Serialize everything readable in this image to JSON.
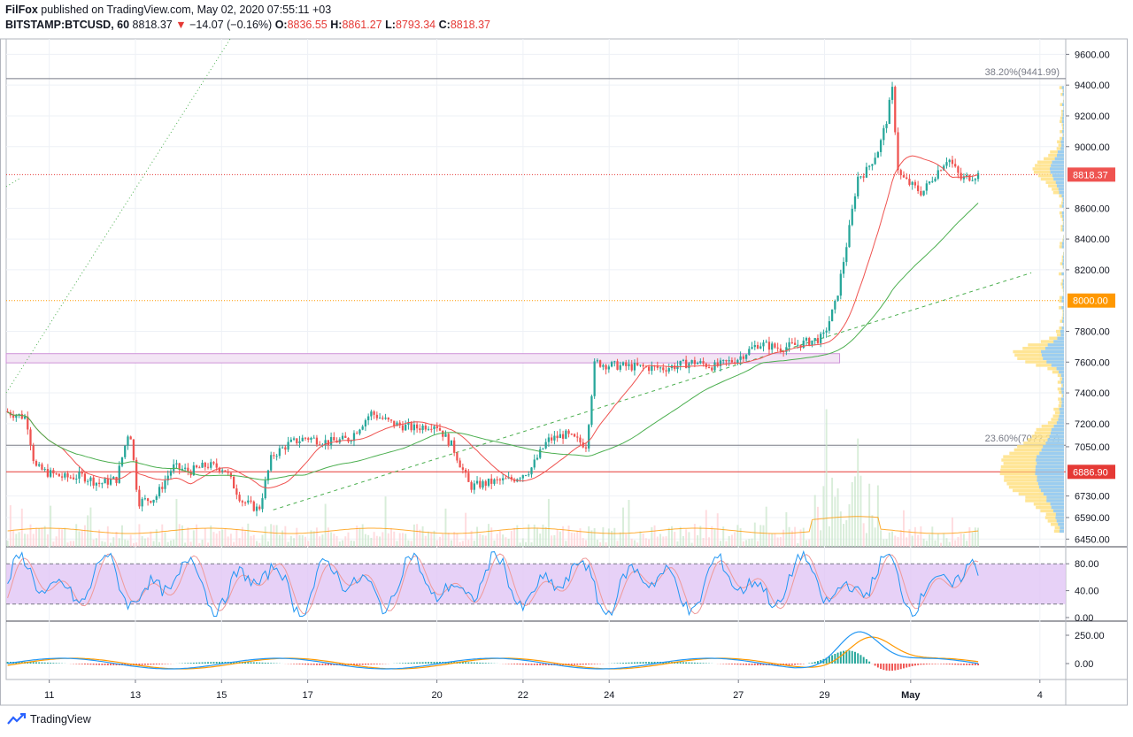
{
  "header": {
    "author": "FilFox",
    "published_text": "published on TradingView.com, May 02, 2020 07:55:11 +03",
    "symbol": "BITSTAMP:BTCUSD, 60",
    "last_price": "8818.37",
    "change_arrow": "▼",
    "change": "−14.07 (−0.16%)",
    "open_label": "O:",
    "open": "8836.55",
    "high_label": "H:",
    "high": "8861.27",
    "low_label": "L:",
    "low": "8793.34",
    "close_label": "C:",
    "close": "8818.37"
  },
  "brand": {
    "name": "TradingView"
  },
  "colors": {
    "up": "#26a69a",
    "down": "#ef5350",
    "ma_fast": "#ef5350",
    "ma_slow": "#4caf50",
    "fib": "#787b86",
    "orange_level": "#ff9800",
    "red_level": "#e53935",
    "stoch_fill": "#e1c6f5",
    "stoch_k": "#2196f3",
    "stoch_d": "#ef9a9a",
    "macd": "#2196f3",
    "signal": "#ff9800",
    "volume_ma": "#ff9800"
  },
  "chart_data": {
    "type": "candlestick",
    "price_axis": {
      "ylim": [
        6400,
        9700
      ],
      "ticks": [
        "6450.00",
        "6590.00",
        "6730.00",
        "7050.00",
        "7200.00",
        "7400.00",
        "7600.00",
        "7800.00",
        "8200.00",
        "8400.00",
        "8600.00",
        "9000.00",
        "9200.00",
        "9400.00",
        "9600.00"
      ]
    },
    "time_axis": {
      "labels": [
        "11",
        "13",
        "15",
        "17",
        "20",
        "22",
        "24",
        "27",
        "29",
        "May",
        "4"
      ]
    },
    "price_series": [
      [
        "10",
        7280
      ],
      [
        "10.5",
        7240
      ],
      [
        "10.7",
        6920
      ],
      [
        "11",
        6880
      ],
      [
        "11.4",
        6850
      ],
      [
        "11.8",
        6860
      ],
      [
        "12.2",
        6810
      ],
      [
        "12.6",
        6840
      ],
      [
        "12.9",
        7180
      ],
      [
        "13.1",
        6690
      ],
      [
        "13.5",
        6720
      ],
      [
        "13.9",
        6920
      ],
      [
        "14.3",
        6890
      ],
      [
        "14.7",
        6930
      ],
      [
        "15.1",
        6910
      ],
      [
        "15.5",
        6700
      ],
      [
        "15.9",
        6640
      ],
      [
        "16.2",
        6990
      ],
      [
        "16.6",
        7070
      ],
      [
        "17",
        7110
      ],
      [
        "17.5",
        7080
      ],
      [
        "18",
        7100
      ],
      [
        "18.5",
        7270
      ],
      [
        "19",
        7200
      ],
      [
        "19.5",
        7170
      ],
      [
        "20",
        7200
      ],
      [
        "20.4",
        7050
      ],
      [
        "20.8",
        6790
      ],
      [
        "21.3",
        6820
      ],
      [
        "21.8",
        6840
      ],
      [
        "22.2",
        6900
      ],
      [
        "22.6",
        7090
      ],
      [
        "23",
        7130
      ],
      [
        "23.5",
        7060
      ],
      [
        "23.7",
        7600
      ],
      [
        "24",
        7580
      ],
      [
        "24.6",
        7570
      ],
      [
        "25.3",
        7560
      ],
      [
        "26",
        7600
      ],
      [
        "26.5",
        7570
      ],
      [
        "27",
        7620
      ],
      [
        "27.5",
        7720
      ],
      [
        "28",
        7690
      ],
      [
        "28.5",
        7720
      ],
      [
        "29",
        7760
      ],
      [
        "29.3",
        7990
      ],
      [
        "29.6",
        8450
      ],
      [
        "29.8",
        8800
      ],
      [
        "30",
        8840
      ],
      [
        "30.3",
        8990
      ],
      [
        "30.5",
        9200
      ],
      [
        "30.6",
        9390
      ],
      [
        "30.75",
        8820
      ],
      [
        "31",
        8760
      ],
      [
        "31.3",
        8700
      ],
      [
        "31.6",
        8820
      ],
      [
        "31.9",
        8930
      ],
      [
        "32.2",
        8790
      ],
      [
        "32.6",
        8818.37
      ]
    ],
    "levels": [
      {
        "label": "38.20%(9441.99)",
        "value": 9441.99
      },
      {
        "label": "8818.37",
        "value": 8818.37
      },
      {
        "label": "8000.00",
        "value": 8000
      },
      {
        "label": "23.60%(70??.??)",
        "value": 7060
      },
      {
        "label": "6886.90",
        "value": 6886.9
      }
    ],
    "stochastic": {
      "ylim": [
        0,
        100
      ],
      "band": [
        20,
        80
      ],
      "ticks": [
        "80.00",
        "40.00",
        "0.00"
      ]
    },
    "macd": {
      "ticks": [
        "250.00",
        "0.00"
      ]
    }
  }
}
